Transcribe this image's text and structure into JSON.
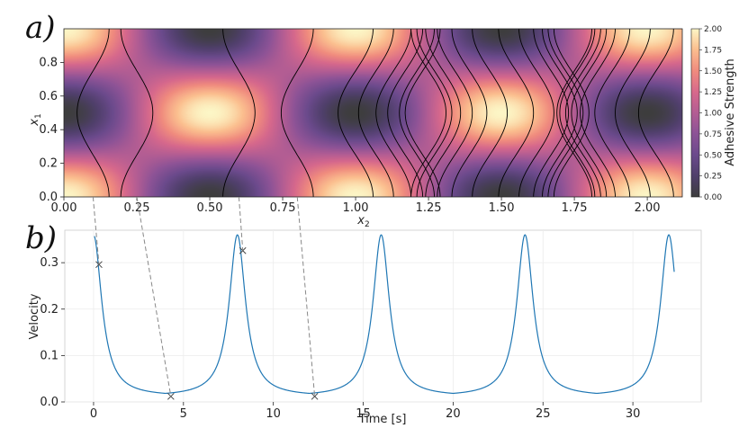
{
  "panel_a": {
    "label": "a)",
    "xlabel": "x",
    "xlabel_sub": "2",
    "ylabel": "x",
    "ylabel_sub": "1",
    "xticks": [
      "0.00",
      "0.25",
      "0.50",
      "0.75",
      "1.00",
      "1.25",
      "1.50",
      "1.75",
      "2.00"
    ],
    "yticks": [
      "0.0",
      "0.2",
      "0.4",
      "0.6",
      "0.8"
    ],
    "colorbar": {
      "label": "Adhesive Strength",
      "ticks": [
        "0.00",
        "0.25",
        "0.50",
        "0.75",
        "1.00",
        "1.25",
        "1.50",
        "1.75",
        "2.00"
      ],
      "colormap": "magma",
      "range": [
        0,
        2
      ]
    }
  },
  "panel_b": {
    "label": "b)",
    "xlabel": "Time [s]",
    "ylabel": "Velocity",
    "xticks": [
      "0",
      "5",
      "10",
      "15",
      "20",
      "25",
      "30"
    ],
    "yticks": [
      "0.0",
      "0.1",
      "0.2",
      "0.3"
    ],
    "line_color": "#1f77b4"
  },
  "chart_data": [
    {
      "type": "heatmap",
      "xlim": [
        0.0,
        2.12
      ],
      "ylim": [
        0.0,
        1.0
      ],
      "value_range": [
        0.0,
        2.0
      ],
      "trajectory_x2_crossings": [
        0.1,
        0.25,
        0.6,
        0.8,
        1.0,
        1.07,
        1.13,
        1.17,
        1.21,
        1.23,
        1.25,
        1.27,
        1.3,
        1.34,
        1.39,
        1.46,
        1.55,
        1.62,
        1.67,
        1.7,
        1.72,
        1.74,
        1.75,
        1.76,
        1.78,
        1.8,
        1.83,
        1.88,
        1.95,
        2.03
      ]
    },
    {
      "type": "line",
      "xlim": [
        -1.6,
        33.8
      ],
      "ylim": [
        0.0,
        0.37
      ],
      "period": 8.0,
      "peak_value": 0.36,
      "min_value": 0.012,
      "t_end": 32.3,
      "end_value": 0.34,
      "markers": [
        {
          "t": 0.3,
          "v": 0.296
        },
        {
          "t": 4.3,
          "v": 0.012
        },
        {
          "t": 8.3,
          "v": 0.326
        },
        {
          "t": 12.3,
          "v": 0.012
        }
      ],
      "links": [
        {
          "x2": 0.1,
          "t": 0.3
        },
        {
          "x2": 0.25,
          "t": 4.3
        },
        {
          "x2": 0.6,
          "t": 8.3
        },
        {
          "x2": 0.8,
          "t": 12.3
        }
      ]
    }
  ]
}
